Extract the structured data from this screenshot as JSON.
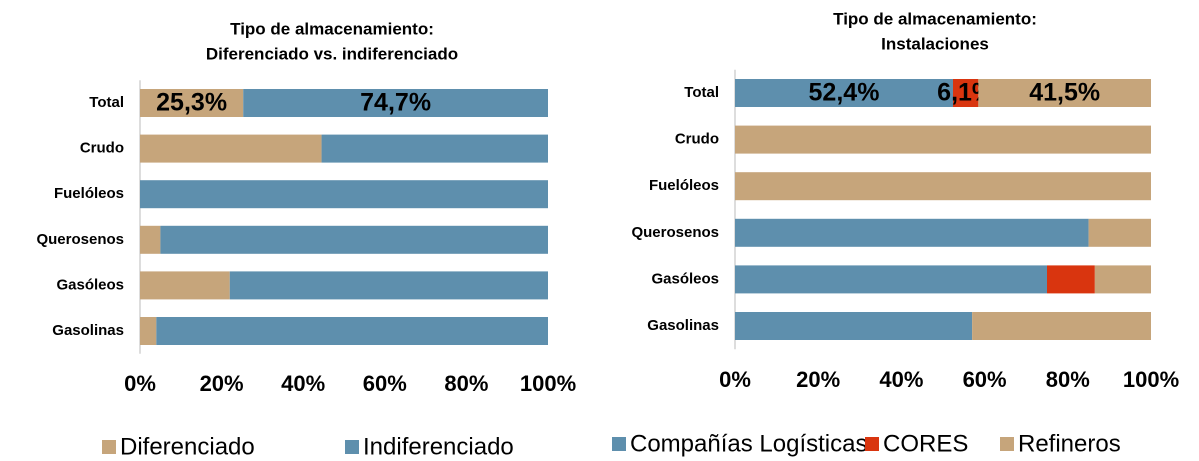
{
  "chart_data": [
    {
      "type": "stacked-bar-horizontal",
      "title": [
        "Tipo de almacenamiento:",
        "Diferenciado vs. indiferenciado"
      ],
      "categories": [
        "Total",
        "Crudo",
        "Fuelóleos",
        "Querosenos",
        "Gasóleos",
        "Gasolinas"
      ],
      "series": [
        {
          "name": "Diferenciado",
          "color": "#c6a57b",
          "values": [
            25.3,
            44.5,
            0,
            5,
            22,
            4
          ],
          "value_labels": [
            "25,3%",
            null,
            null,
            null,
            null,
            null
          ]
        },
        {
          "name": "Indiferenciado",
          "color": "#5e8fad",
          "values": [
            74.7,
            55.5,
            100,
            95,
            78,
            96
          ],
          "value_labels": [
            "74,7%",
            null,
            null,
            null,
            null,
            null
          ]
        }
      ],
      "xlim": [
        0,
        100
      ],
      "xticks": [
        {
          "value": 0,
          "label": "0%"
        },
        {
          "value": 20,
          "label": "20%"
        },
        {
          "value": 40,
          "label": "40%"
        },
        {
          "value": 60,
          "label": "60%"
        },
        {
          "value": 80,
          "label": "80%"
        },
        {
          "value": 100,
          "label": "100%"
        }
      ],
      "legend": "bottom"
    },
    {
      "type": "stacked-bar-horizontal",
      "title": [
        "Tipo de almacenamiento:",
        "Instalaciones"
      ],
      "categories": [
        "Total",
        "Crudo",
        "Fuelóleos",
        "Querosenos",
        "Gasóleos",
        "Gasolinas"
      ],
      "series": [
        {
          "name": "Compañías Logísticas",
          "color": "#5e8fad",
          "values": [
            52.4,
            0,
            0,
            85,
            75,
            57
          ],
          "value_labels": [
            "52,4%",
            null,
            null,
            null,
            null,
            null
          ]
        },
        {
          "name": "CORES",
          "color": "#d9350f",
          "values": [
            6.1,
            0,
            0,
            0,
            11.5,
            0
          ],
          "value_labels": [
            "6,1%",
            null,
            null,
            null,
            null,
            null
          ]
        },
        {
          "name": "Refineros",
          "color": "#c6a57b",
          "values": [
            41.5,
            100,
            100,
            15,
            13.5,
            43
          ],
          "value_labels": [
            "41,5%",
            null,
            null,
            null,
            null,
            null
          ]
        }
      ],
      "xlim": [
        0,
        100
      ],
      "xticks": [
        {
          "value": 0,
          "label": "0%"
        },
        {
          "value": 20,
          "label": "20%"
        },
        {
          "value": 40,
          "label": "40%"
        },
        {
          "value": 60,
          "label": "60%"
        },
        {
          "value": 80,
          "label": "80%"
        },
        {
          "value": 100,
          "label": "100%"
        }
      ],
      "legend": "bottom"
    }
  ]
}
